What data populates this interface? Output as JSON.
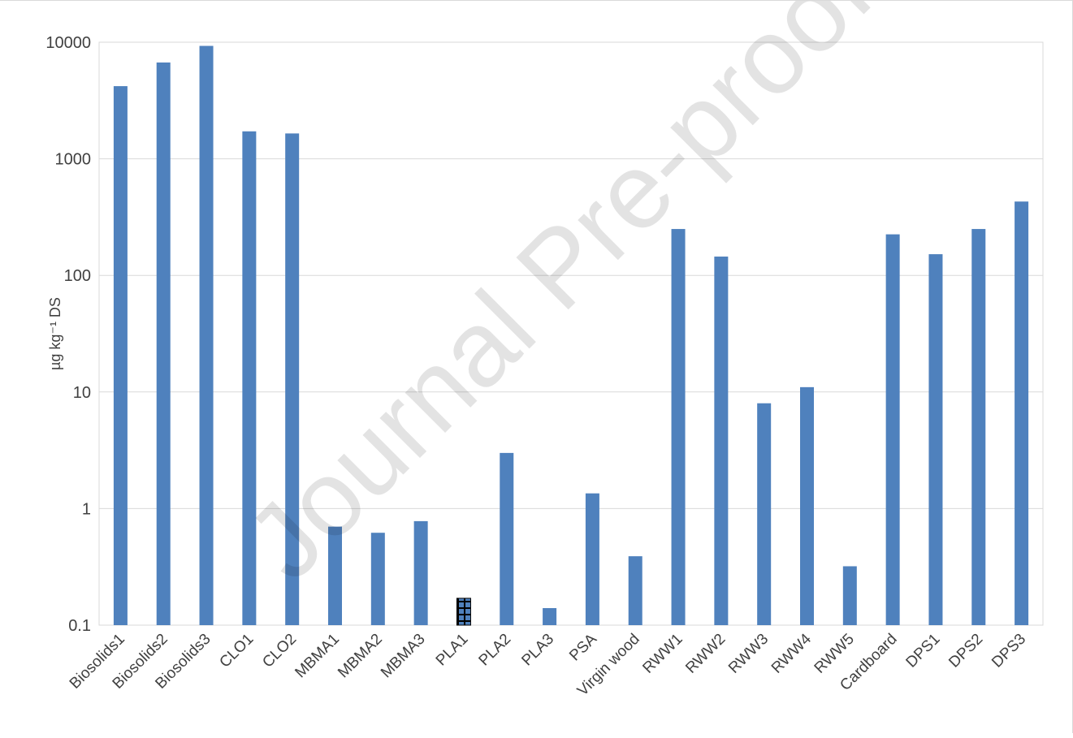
{
  "watermark": "Journal Pre-proof",
  "chart_data": {
    "type": "bar",
    "title": "",
    "xlabel": "",
    "ylabel": "µg kg⁻¹ DS",
    "yscale": "log",
    "ylim": [
      0.1,
      10000
    ],
    "yticks": [
      "0.1",
      "1",
      "10",
      "100",
      "1000",
      "10000"
    ],
    "grid": true,
    "legend": "none",
    "bar_color": "#4f81bd",
    "categories": [
      "Biosolids1",
      "Biosolids2",
      "Biosolids3",
      "CLO1",
      "CLO2",
      "MBMA1",
      "MBMA2",
      "MBMA3",
      "PLA1",
      "PLA2",
      "PLA3",
      "PSA",
      "Virgin wood",
      "RWW1",
      "RWW2",
      "RWW3",
      "RWW4",
      "RWW5",
      "Cardboard",
      "DPS1",
      "DPS2",
      "DPS3"
    ],
    "values": [
      4200,
      6700,
      9300,
      1720,
      1650,
      0.7,
      0.62,
      0.78,
      0.17,
      3.0,
      0.14,
      1.35,
      0.39,
      250,
      145,
      8,
      11,
      0.32,
      225,
      152,
      250,
      430
    ],
    "patterned": [
      "PLA1"
    ]
  }
}
